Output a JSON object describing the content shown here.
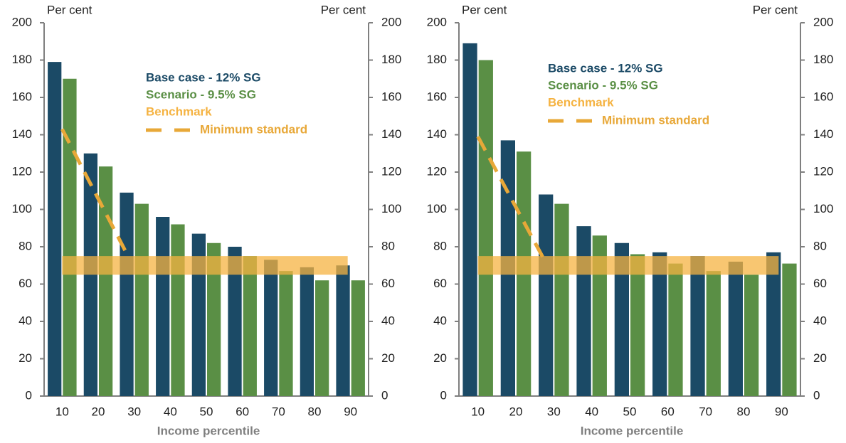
{
  "chart_data": [
    {
      "type": "bar",
      "ylabel": "Per cent",
      "y2label": "Per cent",
      "xlabel": "Income percentile",
      "x": [
        10,
        20,
        30,
        40,
        50,
        60,
        70,
        80,
        90
      ],
      "xlim": [
        5,
        95
      ],
      "series": [
        {
          "name": "Base case - 12%  SG",
          "color": "#1b4a66",
          "values": [
            179,
            130,
            109,
            96,
            87,
            80,
            73,
            69,
            70
          ]
        },
        {
          "name": "Scenario - 9.5%  SG",
          "color": "#5a8f45",
          "values": [
            170,
            123,
            103,
            92,
            82,
            75,
            67,
            62,
            62
          ]
        }
      ],
      "benchmark": {
        "name": "Benchmark",
        "color": "#f5b342",
        "range": [
          65,
          75
        ]
      },
      "minimum_standard": {
        "name": "Minimum standard",
        "color": "#e8a838",
        "x": [
          10,
          28
        ],
        "values": [
          143,
          76
        ]
      },
      "ylim": [
        0,
        200
      ],
      "yticks": [
        0,
        20,
        40,
        60,
        80,
        100,
        120,
        140,
        160,
        180,
        200
      ],
      "y2lim": [
        0,
        200
      ],
      "y2ticks": [
        0,
        20,
        40,
        60,
        80,
        100,
        120,
        140,
        160,
        180,
        200
      ]
    },
    {
      "type": "bar",
      "ylabel": "Per cent",
      "y2label": "Per cent",
      "xlabel": "Income percentile",
      "x": [
        10,
        20,
        30,
        40,
        50,
        60,
        70,
        80,
        90
      ],
      "xlim": [
        5,
        95
      ],
      "series": [
        {
          "name": "Base case - 12%  SG",
          "color": "#1b4a66",
          "values": [
            189,
            137,
            108,
            91,
            82,
            77,
            75,
            72,
            77
          ]
        },
        {
          "name": "Scenario - 9.5%  SG",
          "color": "#5a8f45",
          "values": [
            180,
            131,
            103,
            86,
            76,
            71,
            67,
            65,
            71
          ]
        }
      ],
      "benchmark": {
        "name": "Benchmark",
        "color": "#f5b342",
        "range": [
          65,
          75
        ]
      },
      "minimum_standard": {
        "name": "Minimum standard",
        "color": "#e8a838",
        "x": [
          10,
          28
        ],
        "values": [
          139,
          71
        ]
      },
      "ylim": [
        0,
        200
      ],
      "yticks": [
        0,
        20,
        40,
        60,
        80,
        100,
        120,
        140,
        160,
        180,
        200
      ],
      "y2lim": [
        0,
        200
      ],
      "y2ticks": [
        0,
        20,
        40,
        60,
        80,
        100,
        120,
        140,
        160,
        180,
        200
      ]
    }
  ]
}
